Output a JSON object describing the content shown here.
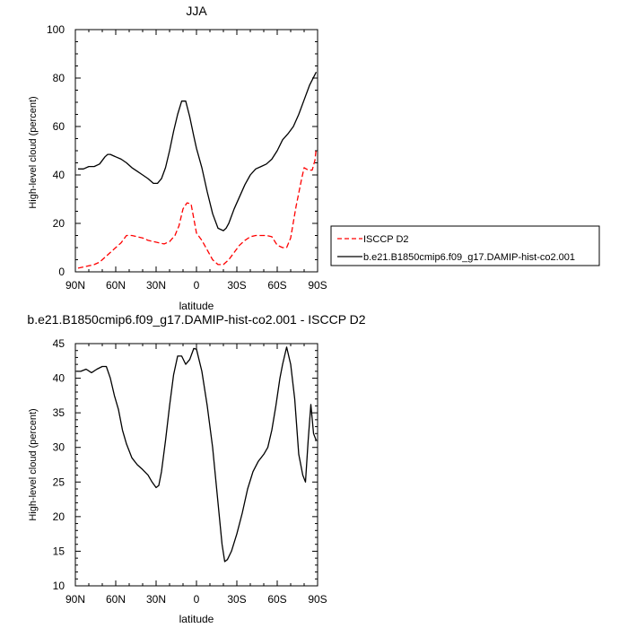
{
  "chart_data": [
    {
      "type": "line",
      "title": "JJA",
      "xlabel": "latitude",
      "ylabel": "High-level cloud (percent)",
      "xlim": [
        90,
        -90
      ],
      "ylim": [
        0,
        100
      ],
      "xticks": [
        90,
        60,
        30,
        0,
        -30,
        -60,
        -90
      ],
      "xtick_labels": [
        "90N",
        "60N",
        "30N",
        "0",
        "30S",
        "60S",
        "90S"
      ],
      "yticks": [
        0,
        20,
        40,
        60,
        80,
        100
      ],
      "ytick_labels": [
        "0",
        "20",
        "40",
        "60",
        "80",
        "100"
      ],
      "legend": "right",
      "series": [
        {
          "name": "ISCCP D2",
          "color": "#ff0000",
          "dash": "dashed",
          "x": [
            88,
            84,
            80,
            76,
            72,
            68,
            64,
            60,
            56,
            52,
            48,
            44,
            40,
            36,
            32,
            28,
            24,
            20,
            16,
            13,
            10,
            7,
            4,
            0,
            -4,
            -8,
            -12,
            -16,
            -20,
            -24,
            -28,
            -32,
            -36,
            -40,
            -44,
            -48,
            -52,
            -56,
            -60,
            -64,
            -67,
            -70,
            -74,
            -78,
            -80,
            -83,
            -86,
            -88,
            -89
          ],
          "y": [
            1.5,
            2,
            2.5,
            3,
            4,
            6,
            8,
            10,
            12,
            15,
            15,
            14.5,
            14,
            13,
            12.5,
            12,
            11.5,
            12.5,
            15,
            19,
            26,
            28.5,
            28,
            16,
            13,
            9,
            5,
            3,
            3,
            5,
            8,
            11,
            13,
            14.5,
            15,
            15,
            15,
            14.5,
            11,
            10,
            10,
            14,
            27,
            38,
            43,
            42,
            42,
            46,
            51
          ]
        },
        {
          "name": "b.e21.B1850cmip6.f09_g17.DAMIP-hist-co2.001",
          "color": "#000000",
          "dash": "solid",
          "x": [
            88,
            84,
            80,
            76,
            72,
            68,
            66,
            64,
            60,
            56,
            52,
            48,
            44,
            40,
            36,
            32,
            29,
            26,
            23,
            20,
            17,
            14,
            11,
            8,
            5,
            2,
            0,
            -4,
            -8,
            -12,
            -16,
            -20,
            -22,
            -24,
            -28,
            -32,
            -36,
            -40,
            -44,
            -48,
            -52,
            -56,
            -60,
            -64,
            -68,
            -72,
            -76,
            -80,
            -84,
            -89
          ],
          "y": [
            42.5,
            42.5,
            43.5,
            43.5,
            44.5,
            47.5,
            48.5,
            48.5,
            47.5,
            46.5,
            45,
            43,
            41.5,
            40,
            38.5,
            36.5,
            36.5,
            38.5,
            43,
            50,
            58,
            65,
            70.5,
            70.5,
            64,
            56,
            51,
            43,
            33,
            24,
            18,
            17,
            18,
            20,
            26,
            31,
            36,
            40,
            42.5,
            43.5,
            44.5,
            46.5,
            50,
            54.5,
            57,
            60,
            65,
            71,
            77,
            82.5
          ]
        }
      ]
    },
    {
      "type": "line",
      "title": "b.e21.B1850cmip6.f09_g17.DAMIP-hist-co2.001 - ISCCP D2",
      "xlabel": "latitude",
      "ylabel": "High-level cloud (percent)",
      "xlim": [
        90,
        -90
      ],
      "ylim": [
        10,
        45
      ],
      "xticks": [
        90,
        60,
        30,
        0,
        -30,
        -60,
        -90
      ],
      "xtick_labels": [
        "90N",
        "60N",
        "30N",
        "0",
        "30S",
        "60S",
        "90S"
      ],
      "yticks": [
        10,
        15,
        20,
        25,
        30,
        35,
        40,
        45
      ],
      "ytick_labels": [
        "10",
        "15",
        "20",
        "25",
        "30",
        "35",
        "40",
        "45"
      ],
      "series": [
        {
          "color": "#000000",
          "dash": "solid",
          "x": [
            89,
            86,
            82,
            78,
            74,
            70,
            67,
            64,
            61,
            58,
            55,
            52,
            48,
            44,
            40,
            36,
            33,
            30,
            28,
            26,
            23,
            20,
            17,
            14,
            11,
            8,
            5,
            2,
            0,
            -4,
            -8,
            -12,
            -16,
            -19,
            -21,
            -23,
            -26,
            -30,
            -34,
            -38,
            -42,
            -46,
            -50,
            -53,
            -56,
            -59,
            -62,
            -64,
            -67,
            -70,
            -73,
            -76,
            -79,
            -81,
            -83,
            -85,
            -87,
            -89
          ],
          "y": [
            41,
            41,
            41.3,
            40.8,
            41.3,
            41.7,
            41.7,
            40,
            37.5,
            35.5,
            32.5,
            30.5,
            28.5,
            27.5,
            26.8,
            26,
            25,
            24.2,
            24.5,
            26.5,
            31,
            36,
            40.5,
            43.2,
            43.2,
            42,
            42.7,
            44.3,
            44.2,
            41,
            36,
            30,
            22,
            16,
            13.5,
            13.8,
            15,
            17.5,
            20.5,
            24,
            26.5,
            28,
            29,
            30,
            32.5,
            36,
            40,
            42,
            44.5,
            42,
            37,
            29,
            26,
            25,
            31,
            36.2,
            32,
            31
          ]
        }
      ]
    }
  ]
}
